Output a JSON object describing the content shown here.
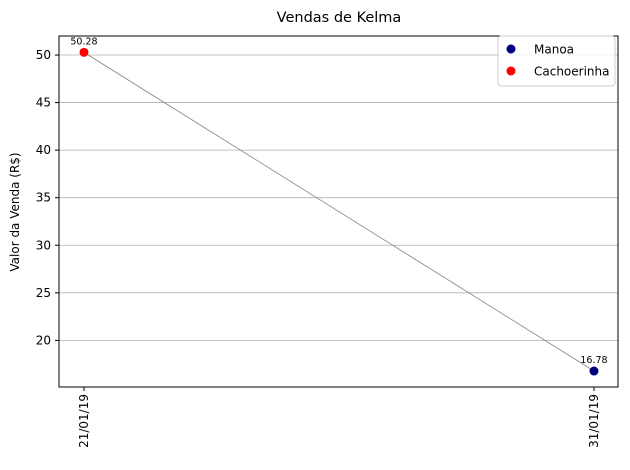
{
  "chart_data": {
    "type": "scatter",
    "title": "Vendas de Kelma",
    "xlabel": "",
    "ylabel": "Valor da Venda (R$)",
    "x_categories": [
      "21/01/19",
      "31/01/19"
    ],
    "y_ticks": [
      20,
      25,
      30,
      35,
      40,
      45,
      50
    ],
    "ylim": [
      15.1,
      52.0
    ],
    "grid": "horizontal",
    "legend_position": "top-right",
    "connector_line": {
      "color": "#808080",
      "points": [
        {
          "x": "21/01/19",
          "y": 50.28
        },
        {
          "x": "31/01/19",
          "y": 16.78
        }
      ]
    },
    "series": [
      {
        "name": "Manoa",
        "color": "#00007f",
        "points": [
          {
            "x": "31/01/19",
            "y": 16.78,
            "label": "16.78"
          }
        ]
      },
      {
        "name": "Cachoerinha",
        "color": "#ff0000",
        "points": [
          {
            "x": "21/01/19",
            "y": 50.28,
            "label": "50.28"
          }
        ]
      }
    ]
  }
}
